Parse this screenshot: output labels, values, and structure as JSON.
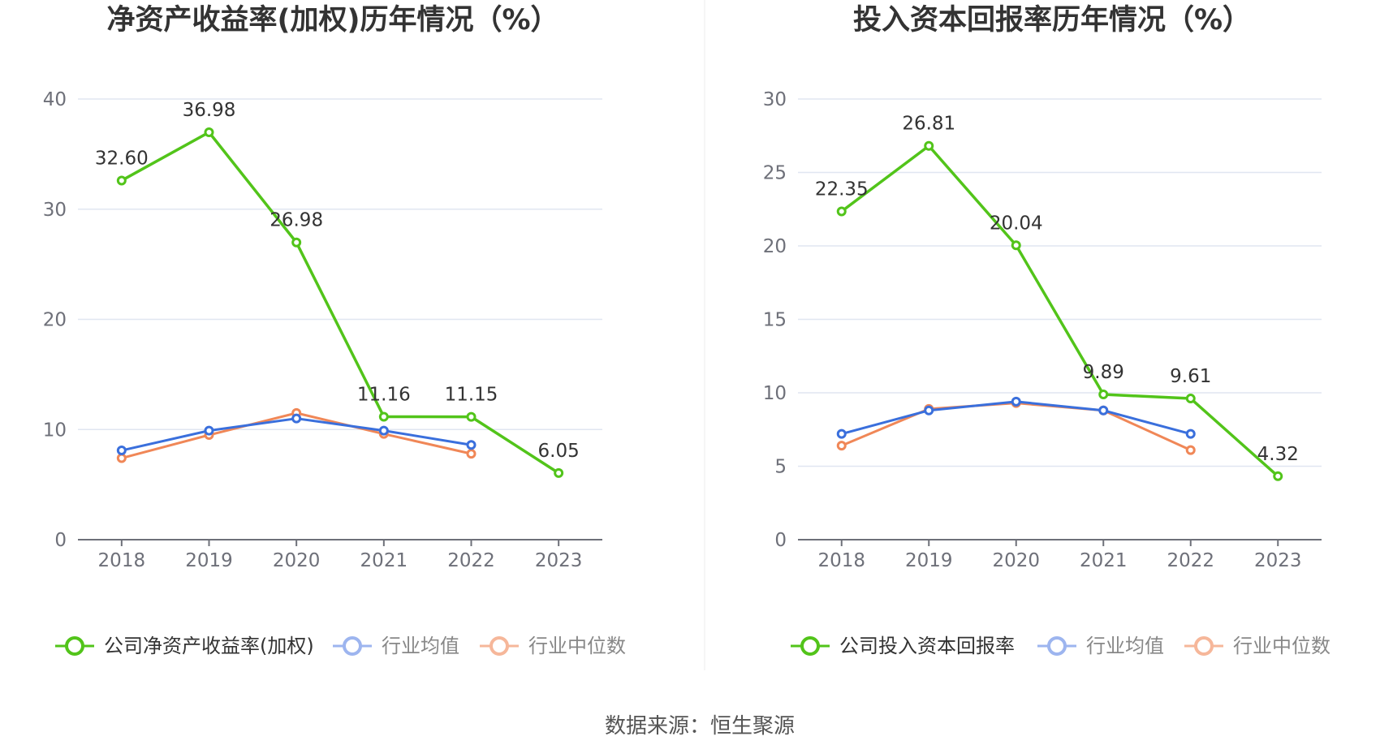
{
  "source_label": "数据来源：恒生聚源",
  "colors": {
    "company": "#52c41a",
    "avg": "#3a6fdc",
    "median": "#f08757",
    "grid": "#e0e6f1",
    "axis": "#6e7079"
  },
  "chart_data": [
    {
      "type": "line",
      "title": "净资产收益率(加权)历年情况（%）",
      "categories": [
        "2018",
        "2019",
        "2020",
        "2021",
        "2022",
        "2023"
      ],
      "ylim": [
        0,
        40
      ],
      "yticks": [
        0,
        10,
        20,
        30,
        40
      ],
      "grid": true,
      "legend_position": "bottom",
      "series": [
        {
          "name": "公司净资产收益率(加权)",
          "values": [
            32.6,
            36.98,
            26.98,
            11.16,
            11.15,
            6.05
          ],
          "labels": [
            "32.60",
            "36.98",
            "26.98",
            "11.16",
            "11.15",
            "6.05"
          ]
        },
        {
          "name": "行业均值",
          "values": [
            8.1,
            9.9,
            11.0,
            9.9,
            8.6,
            null
          ]
        },
        {
          "name": "行业中位数",
          "values": [
            7.4,
            9.5,
            11.5,
            9.6,
            7.8,
            null
          ]
        }
      ]
    },
    {
      "type": "line",
      "title": "投入资本回报率历年情况（%）",
      "categories": [
        "2018",
        "2019",
        "2020",
        "2021",
        "2022",
        "2023"
      ],
      "ylim": [
        0,
        30
      ],
      "yticks": [
        0,
        5,
        10,
        15,
        20,
        25,
        30
      ],
      "grid": true,
      "legend_position": "bottom",
      "series": [
        {
          "name": "公司投入资本回报率",
          "values": [
            22.35,
            26.81,
            20.04,
            9.89,
            9.61,
            4.32
          ],
          "labels": [
            "22.35",
            "26.81",
            "20.04",
            "9.89",
            "9.61",
            "4.32"
          ]
        },
        {
          "name": "行业均值",
          "values": [
            7.2,
            8.8,
            9.4,
            8.8,
            7.2,
            null
          ]
        },
        {
          "name": "行业中位数",
          "values": [
            6.4,
            8.9,
            9.3,
            8.8,
            6.1,
            null
          ]
        }
      ]
    }
  ]
}
